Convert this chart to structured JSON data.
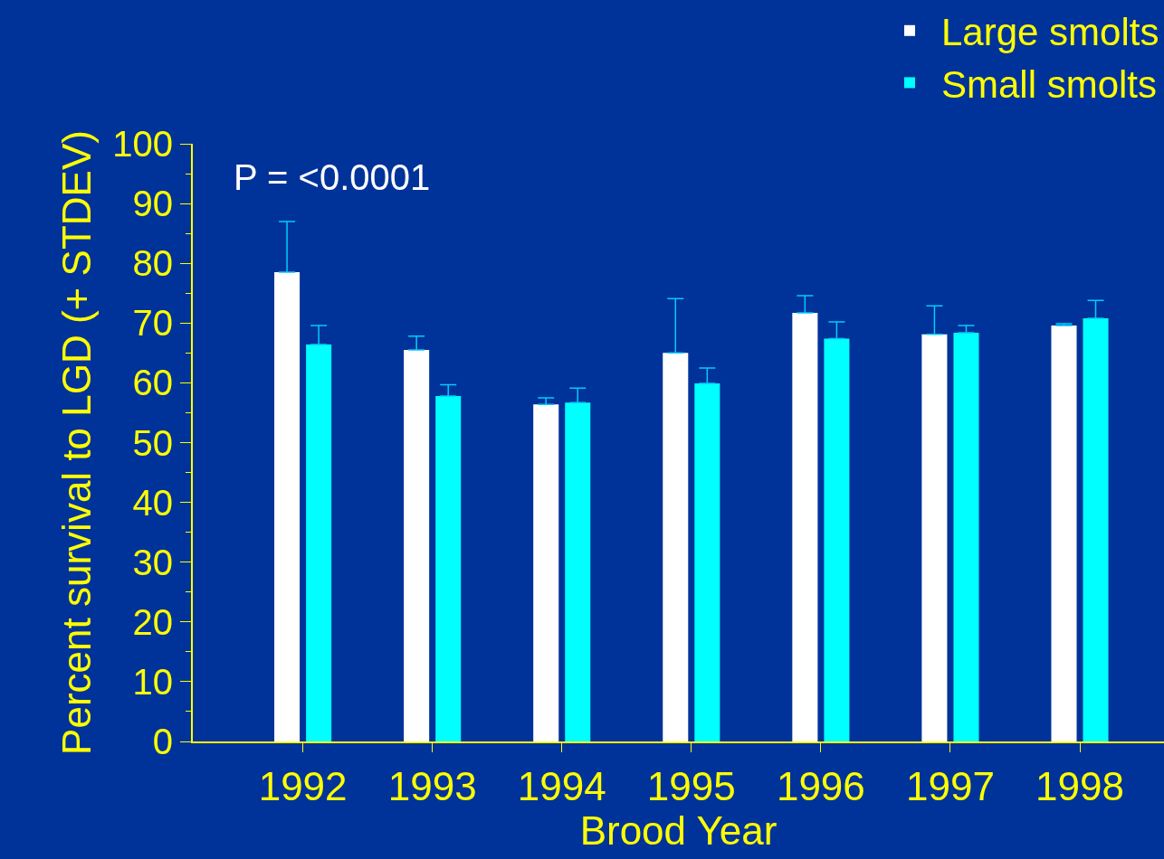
{
  "chart_data": {
    "type": "bar",
    "xlabel": "Brood Year",
    "ylabel": "Percent survival to LGD (+ STDEV)",
    "categories": [
      "1992",
      "1993",
      "1994",
      "1995",
      "1996",
      "1997",
      "1998"
    ],
    "series": [
      {
        "name": "Large smolts",
        "color": "#ffffff",
        "values": [
          78.5,
          65.5,
          56.4,
          65.0,
          71.7,
          68.1,
          69.6
        ],
        "errors": [
          [
            78.5,
            87.0
          ],
          [
            65.5,
            67.8
          ],
          [
            56.4,
            57.5
          ],
          [
            65.0,
            74.1
          ],
          [
            71.7,
            74.6
          ],
          [
            68.1,
            72.9
          ],
          [
            69.6,
            69.9
          ]
        ]
      },
      {
        "name": "Small smolts",
        "color": "#00ffff",
        "values": [
          66.4,
          57.8,
          56.7,
          59.9,
          67.4,
          68.4,
          70.8
        ],
        "errors": [
          [
            66.4,
            69.6
          ],
          [
            57.8,
            59.7
          ],
          [
            56.7,
            59.1
          ],
          [
            59.9,
            62.5
          ],
          [
            67.4,
            70.2
          ],
          [
            68.4,
            69.6
          ],
          [
            70.8,
            73.8
          ]
        ]
      }
    ],
    "ylim": [
      0,
      100
    ],
    "yticks": [
      0,
      10,
      20,
      30,
      40,
      50,
      60,
      70,
      80,
      90,
      100
    ],
    "grid": false,
    "legend": "top right",
    "annotations": [
      "P = <0.0001"
    ]
  }
}
